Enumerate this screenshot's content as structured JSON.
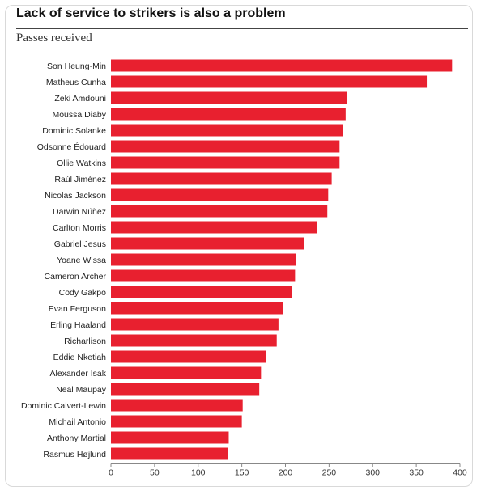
{
  "header": {
    "title": "Lack of service to strikers is also a problem",
    "subtitle": "Passes received"
  },
  "chart_data": {
    "type": "bar",
    "orientation": "horizontal",
    "title": "Lack of service to strikers is also a problem",
    "subtitle": "Passes received",
    "xlabel": "",
    "ylabel": "",
    "xlim": [
      0,
      400
    ],
    "xticks": [
      0,
      50,
      100,
      150,
      200,
      250,
      300,
      350,
      400
    ],
    "grid": false,
    "bar_color": "#e8202f",
    "categories": [
      "Son Heung-Min",
      "Matheus Cunha",
      "Zeki Amdouni",
      "Moussa Diaby",
      "Dominic Solanke",
      "Odsonne Édouard",
      "Ollie Watkins",
      "Raúl Jiménez",
      "Nicolas Jackson",
      "Darwin Núñez",
      "Carlton Morris",
      "Gabriel Jesus",
      "Yoane Wissa",
      "Cameron Archer",
      "Cody Gakpo",
      "Evan Ferguson",
      "Erling Haaland",
      "Richarlison",
      "Eddie Nketiah",
      "Alexander Isak",
      "Neal Maupay",
      "Dominic Calvert-Lewin",
      "Michail Antonio",
      "Anthony Martial",
      "Rasmus Højlund"
    ],
    "values": [
      391,
      362,
      271,
      269,
      266,
      262,
      262,
      253,
      249,
      248,
      236,
      221,
      212,
      211,
      207,
      197,
      192,
      190,
      178,
      172,
      170,
      151,
      150,
      135,
      134
    ]
  }
}
